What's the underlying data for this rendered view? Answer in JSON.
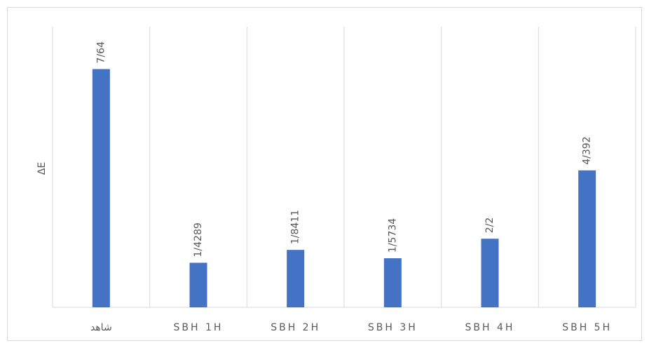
{
  "chart_data": {
    "type": "bar",
    "y_label": "ΔE",
    "categories": [
      "شاهد",
      "SBH 1H",
      "SBH 2H",
      "SBH 3H",
      "SBH 4H",
      "SBH 5H"
    ],
    "values": [
      7.64,
      1.4289,
      1.8411,
      1.5734,
      2.2,
      4.392
    ],
    "value_labels": [
      "7/64",
      "1/4289",
      "1/8411",
      "1/5734",
      "2/2",
      "4/392"
    ],
    "color": "#4472c4",
    "ylim": [
      0,
      9
    ],
    "category_separators": true
  }
}
